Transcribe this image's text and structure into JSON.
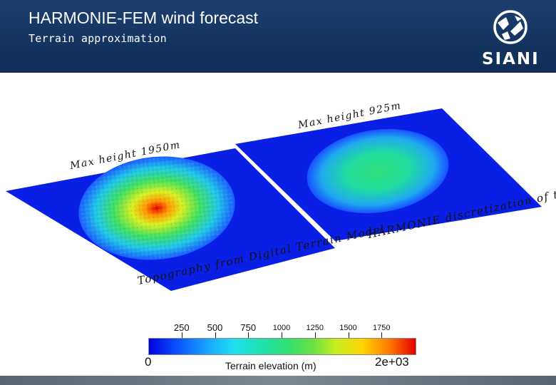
{
  "header": {
    "title": "HARMONIE-FEM wind forecast",
    "subtitle": "Terrain approximation",
    "logo_text": "SIANI",
    "background_color": "#0f2d57"
  },
  "figure": {
    "left_panel": {
      "max_label": "Max height 1950m",
      "caption": "Topography from Digital Terrain Model"
    },
    "right_panel": {
      "max_label": "Max height 925m",
      "caption": "HARMONIE discretization of terrain"
    }
  },
  "colorbar": {
    "title": "Terrain elevation (m)",
    "min_label": "0",
    "max_label": "2e+03",
    "ticks": [
      "250",
      "500",
      "750",
      "1000",
      "1250",
      "1500",
      "1750"
    ],
    "colormap": [
      "#0000e0",
      "#1aa6ff",
      "#20e0f0",
      "#30e070",
      "#c6ee20",
      "#ffd400",
      "#ff7a00",
      "#e40000"
    ]
  }
}
